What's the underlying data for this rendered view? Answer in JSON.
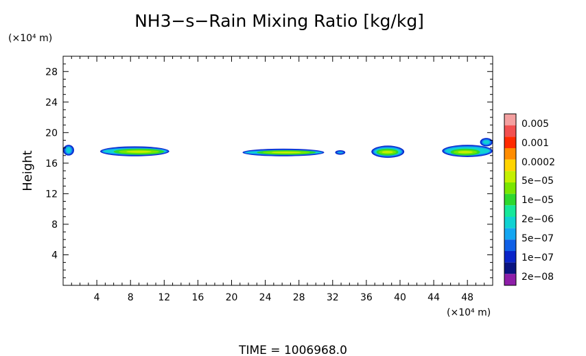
{
  "chart_data": {
    "type": "heatmap",
    "title": "NH3−s−Rain Mixing Ratio [kg/kg]",
    "ylabel": "Height",
    "y_unit": "(×10⁴ m)",
    "x_unit": "(×10⁴ m)",
    "footer": "TIME  =  1006968.0",
    "xlim": [
      0,
      51
    ],
    "ylim": [
      0,
      30
    ],
    "x_ticks": [
      4,
      8,
      12,
      16,
      20,
      24,
      28,
      32,
      36,
      40,
      44,
      48
    ],
    "y_ticks": [
      4,
      8,
      12,
      16,
      20,
      24,
      28
    ],
    "grid": false,
    "legend_position": "right",
    "colorbar": {
      "labels": [
        "0.005",
        "0.001",
        "0.0002",
        "5e−05",
        "1e−05",
        "2e−06",
        "5e−07",
        "1e−07",
        "2e−08"
      ],
      "colors_top_to_bottom": [
        "#f4a0a0",
        "#f25050",
        "#ff2a00",
        "#ff8c00",
        "#ffd400",
        "#c4f000",
        "#7ae600",
        "#2ed82e",
        "#16e89a",
        "#10d2d2",
        "#14a6f2",
        "#1060e6",
        "#0a24c8",
        "#0a1480",
        "#8e1ea8"
      ]
    },
    "regions": [
      {
        "x0": 0.0,
        "x1": 1.3,
        "y0": 17.0,
        "y1": 18.4,
        "level": "1e−07",
        "core": null
      },
      {
        "x0": 4.4,
        "x1": 12.6,
        "y0": 16.9,
        "y1": 18.2,
        "level": "1e−07",
        "core": {
          "x0": 6.0,
          "x1": 12.0,
          "y0": 17.1,
          "y1": 17.9
        }
      },
      {
        "x0": 21.3,
        "x1": 31.0,
        "y0": 16.9,
        "y1": 17.9,
        "level": "1e−07",
        "core": {
          "x0": 23.0,
          "x1": 30.0,
          "y0": 17.1,
          "y1": 17.7
        }
      },
      {
        "x0": 32.3,
        "x1": 33.5,
        "y0": 17.1,
        "y1": 17.7,
        "level": "1e−07",
        "core": null
      },
      {
        "x0": 36.6,
        "x1": 40.5,
        "y0": 16.7,
        "y1": 18.3,
        "level": "1e−07",
        "core": {
          "x0": 37.2,
          "x1": 39.8,
          "y0": 17.0,
          "y1": 17.9
        }
      },
      {
        "x0": 45.0,
        "x1": 51.0,
        "y0": 16.8,
        "y1": 18.4,
        "level": "1e−07",
        "core": {
          "x0": 46.0,
          "x1": 49.5,
          "y0": 17.0,
          "y1": 17.9
        }
      },
      {
        "x0": 49.5,
        "x1": 51.0,
        "y0": 18.2,
        "y1": 19.3,
        "level": "1e−07",
        "core": null
      }
    ]
  }
}
